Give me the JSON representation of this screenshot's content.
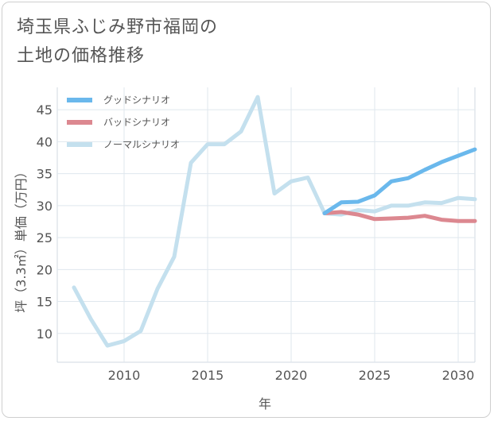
{
  "title_line1": "埼玉県ふじみ野市福岡の",
  "title_line2": "土地の価格推移",
  "chart_data": {
    "type": "line",
    "xlabel": "年",
    "ylabel": "坪（3.3㎡）単価（万円）",
    "xlim": [
      2006,
      2031
    ],
    "ylim": [
      5.5,
      48.5
    ],
    "x_ticks": [
      2010,
      2015,
      2020,
      2025,
      2030
    ],
    "y_ticks": [
      10,
      15,
      20,
      25,
      30,
      35,
      40,
      45
    ],
    "grid": true,
    "legend_position": "top-left",
    "series": [
      {
        "name": "グッドシナリオ",
        "color": "#6ab8ec",
        "x": [
          2022,
          2023,
          2024,
          2025,
          2026,
          2027,
          2028,
          2029,
          2030,
          2031
        ],
        "values": [
          28.8,
          30.5,
          30.6,
          31.6,
          33.8,
          34.3,
          35.6,
          36.8,
          37.8,
          38.8
        ]
      },
      {
        "name": "バッドシナリオ",
        "color": "#dc8890",
        "x": [
          2022,
          2023,
          2024,
          2025,
          2026,
          2027,
          2028,
          2029,
          2030,
          2031
        ],
        "values": [
          28.8,
          29.0,
          28.6,
          27.9,
          28.0,
          28.1,
          28.4,
          27.8,
          27.6,
          27.6
        ]
      },
      {
        "name": "ノーマルシナリオ",
        "color": "#c4e0ee",
        "x": [
          2007,
          2008,
          2009,
          2010,
          2011,
          2012,
          2013,
          2014,
          2015,
          2016,
          2017,
          2018,
          2019,
          2020,
          2021,
          2022,
          2023,
          2024,
          2025,
          2026,
          2027,
          2028,
          2029,
          2030,
          2031
        ],
        "values": [
          17.2,
          12.3,
          8.1,
          8.8,
          10.4,
          17.0,
          22.0,
          36.7,
          39.6,
          39.6,
          41.6,
          47.0,
          31.9,
          33.8,
          34.4,
          28.8,
          28.6,
          29.3,
          29.1,
          30.0,
          30.0,
          30.5,
          30.4,
          31.2,
          31.0
        ]
      }
    ]
  }
}
